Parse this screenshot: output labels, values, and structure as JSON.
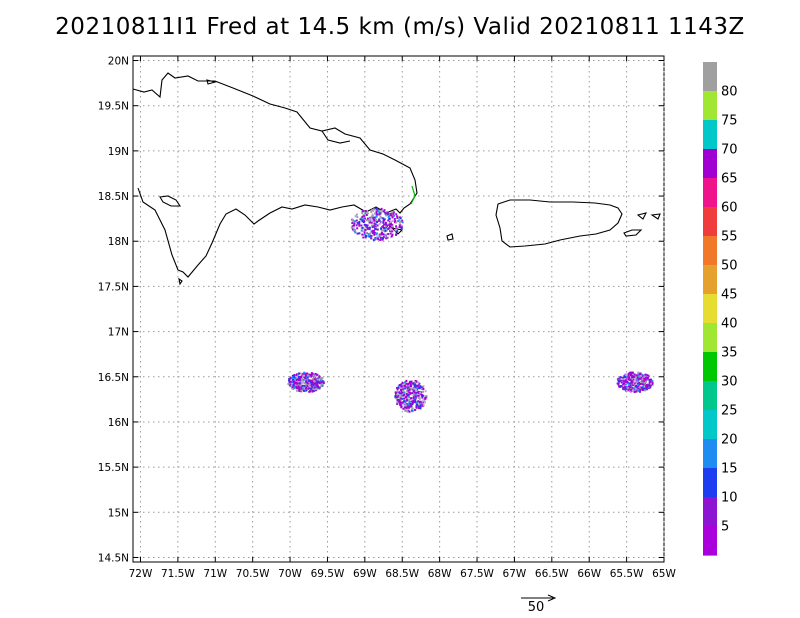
{
  "title": "20210811I1 Fred at 14.5 km (m/s) Valid 20210811  1143Z",
  "map": {
    "lon_range": [
      -72.1,
      -65.0
    ],
    "lat_range": [
      14.45,
      20.05
    ],
    "x_ticks": [
      "72W",
      "71.5W",
      "71W",
      "70.5W",
      "70W",
      "69.5W",
      "69W",
      "68.5W",
      "68W",
      "67.5W",
      "67W",
      "66.5W",
      "66W",
      "65.5W",
      "65W"
    ],
    "y_ticks": [
      "20N",
      "19.5N",
      "19N",
      "18.5N",
      "18N",
      "17.5N",
      "17N",
      "16.5N",
      "16N",
      "15.5N",
      "15N",
      "14.5N"
    ],
    "grid": "dotted",
    "echo_clusters": [
      {
        "name": "north",
        "lon": -68.85,
        "lat": 18.2
      },
      {
        "name": "west",
        "lon": -69.8,
        "lat": 16.45
      },
      {
        "name": "center",
        "lon": -68.4,
        "lat": 16.3
      },
      {
        "name": "east",
        "lon": -65.4,
        "lat": 16.45
      }
    ]
  },
  "colorbar": {
    "labels": [
      "80",
      "75",
      "70",
      "65",
      "60",
      "55",
      "50",
      "45",
      "40",
      "35",
      "30",
      "25",
      "20",
      "15",
      "10",
      "5"
    ],
    "colors": [
      "#a0a0a0",
      "#a0e632",
      "#00c8c8",
      "#a000d2",
      "#f0148c",
      "#f03c3c",
      "#f07828",
      "#e6a02d",
      "#e6dc32",
      "#a0e632",
      "#00c800",
      "#00c88c",
      "#00c8c8",
      "#1e8cf0",
      "#1e3cf0",
      "#8c14d2",
      "#aa00dc"
    ]
  },
  "reference_vector": {
    "label": "50"
  }
}
